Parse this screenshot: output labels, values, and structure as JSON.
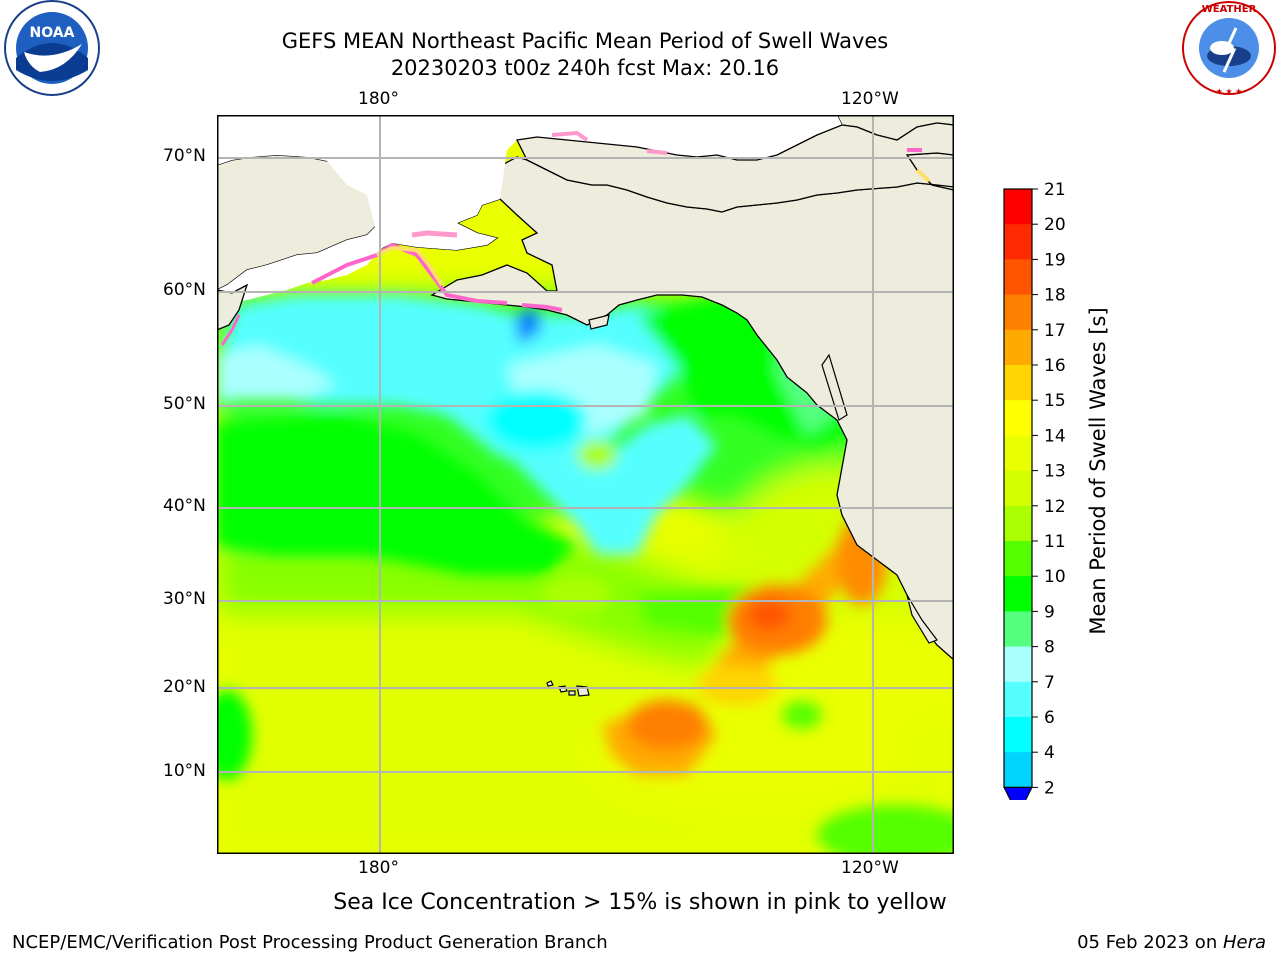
{
  "title": {
    "line1": "GEFS MEAN Northeast Pacific Mean Period of Swell Waves",
    "line2": "20230203 t00z 240h fcst   Max: 20.16"
  },
  "logos": {
    "left": {
      "name": "noaa-logo",
      "text": "NOAA"
    },
    "right": {
      "name": "nws-logo",
      "text": "NATIONAL WEATHER SERVICE"
    }
  },
  "map": {
    "lon_labels_top": [
      "180°",
      "120°W"
    ],
    "lon_labels_bottom": [
      "180°",
      "120°W"
    ],
    "lat_labels": [
      "70°N",
      "60°N",
      "50°N",
      "40°N",
      "30°N",
      "20°N",
      "10°N"
    ],
    "colors": {
      "land": "#eeecdc",
      "grid": "#b4b4b4",
      "coast": "#000000",
      "ice_pink": "#ff66cc",
      "ice_yellow": "#ffe066"
    }
  },
  "colorbar": {
    "label": "Mean Period of Swell Waves [s]",
    "ticks": [
      "21",
      "20",
      "19",
      "18",
      "17",
      "16",
      "15",
      "14",
      "13",
      "12",
      "11",
      "10",
      "9",
      "8",
      "7",
      "6",
      "4",
      "2"
    ],
    "colors": [
      "#ff0000",
      "#ff2a00",
      "#ff5500",
      "#ff7f00",
      "#ffaa00",
      "#ffd400",
      "#ffff00",
      "#eaff00",
      "#d4ff00",
      "#aaff00",
      "#55ff00",
      "#00ff00",
      "#55ff80",
      "#aaffff",
      "#55ffff",
      "#00ffff",
      "#00d4ff",
      "#0080ff",
      "#0000ff"
    ]
  },
  "caption": "Sea Ice Concentration > 15% is shown in pink to yellow",
  "footer": {
    "left": "NCEP/EMC/Verification Post Processing Product Generation Branch",
    "right_date": "05 Feb 2023 on ",
    "right_host": "Hera"
  }
}
